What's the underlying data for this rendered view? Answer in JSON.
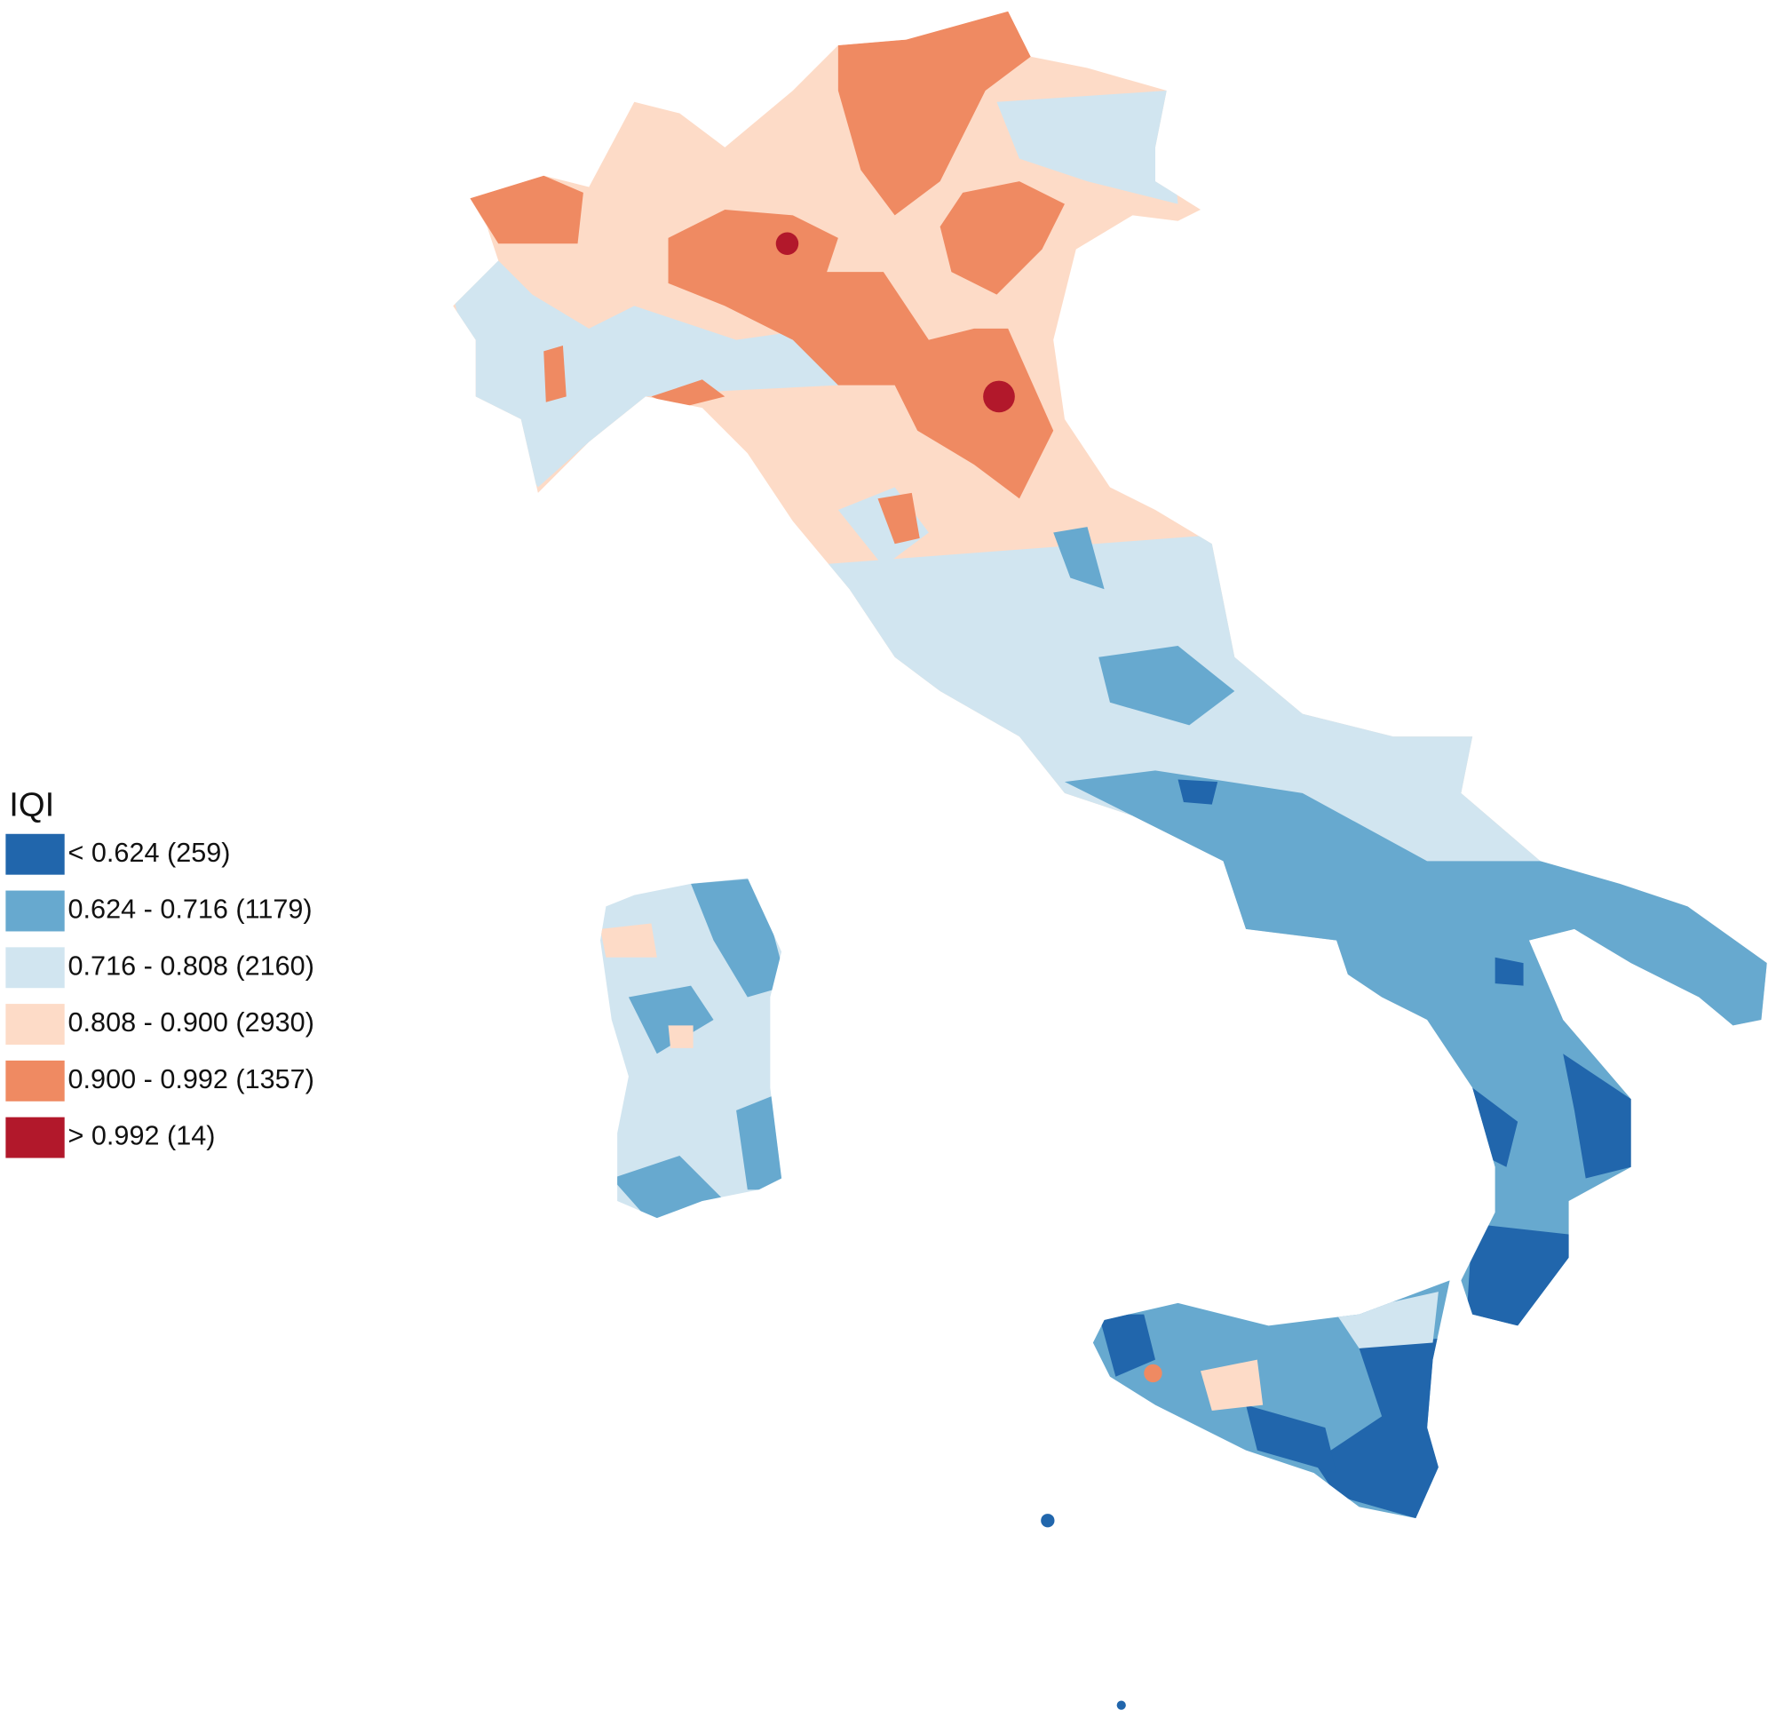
{
  "legend": {
    "title": "IQI",
    "items": [
      {
        "label": "< 0.624 (259)",
        "color": "#2166ac"
      },
      {
        "label": "0.624 - 0.716 (1179)",
        "color": "#67a9cf"
      },
      {
        "label": "0.716 - 0.808 (2160)",
        "color": "#d1e5f0"
      },
      {
        "label": "0.808 - 0.900 (2930)",
        "color": "#fddbc7"
      },
      {
        "label": "0.900 - 0.992 (1357)",
        "color": "#ef8a62"
      },
      {
        "label": "> 0.992 (14)",
        "color": "#b2182b"
      }
    ]
  }
}
